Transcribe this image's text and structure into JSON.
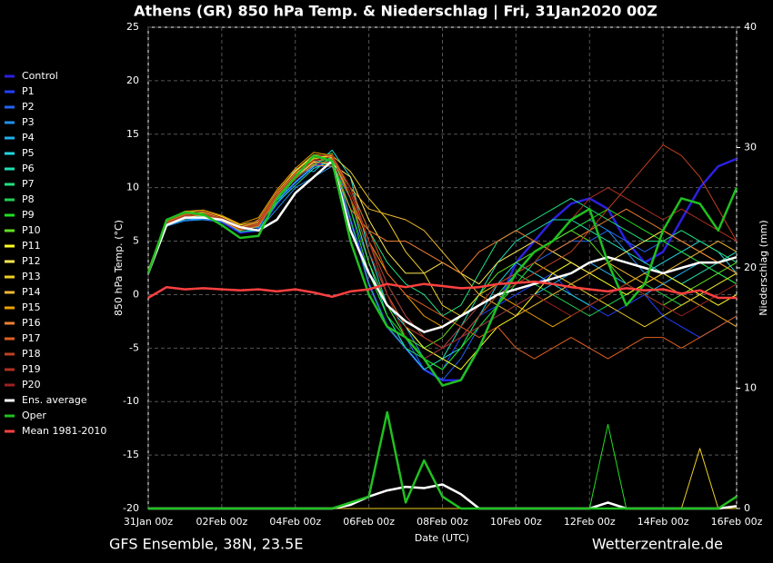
{
  "chart_data": {
    "type": "line",
    "title": "Athens  (GR)  850 hPa Temp. & Niederschlag | Fri, 31Jan2020 00Z",
    "ylabel": "850 hPa Temp. (°C)",
    "y2label": "Niederschlag (mm)",
    "xlabel": "Date (UTC)",
    "footer_left": "GFS Ensemble, 38N, 23.5E",
    "footer_right": "Wetterzentrale.de",
    "grid": true,
    "legend": "left",
    "categories": [
      "31Jan 00z",
      null,
      null,
      null,
      "02Feb 00z",
      null,
      null,
      null,
      "04Feb 00z",
      null,
      null,
      null,
      "06Feb 00z",
      null,
      null,
      null,
      "08Feb 00z",
      null,
      null,
      null,
      "10Feb 00z",
      null,
      null,
      null,
      "12Feb 00z",
      null,
      null,
      null,
      "14Feb 00z",
      null,
      null,
      null,
      "16Feb 00z"
    ],
    "ylim": [
      -20,
      25
    ],
    "yticks": [
      -20,
      -15,
      -10,
      -5,
      0,
      5,
      10,
      15,
      20,
      25
    ],
    "y2lim": [
      0,
      40
    ],
    "y2ticks": [
      0,
      10,
      20,
      30,
      40
    ],
    "series": [
      {
        "name": "Control",
        "color": "#2a20e0",
        "values": [
          2,
          6.8,
          7.3,
          7.2,
          6.8,
          5.8,
          6,
          8.5,
          10.5,
          12,
          12.6,
          7,
          1,
          -3,
          -5,
          -7,
          -8,
          -8,
          -5,
          -1,
          3,
          5,
          7,
          8.5,
          9,
          8,
          5,
          3,
          4,
          7,
          10,
          12,
          12.7
        ]
      },
      {
        "name": "P1",
        "color": "#2040ff",
        "values": [
          2,
          6.5,
          7,
          7,
          6.8,
          6,
          6.5,
          9,
          11.5,
          12,
          12,
          7,
          2,
          -2,
          -5,
          -6,
          -7,
          -4,
          -2,
          -1,
          0,
          1,
          2,
          0,
          -1,
          -2,
          -1,
          0,
          -2,
          -3,
          -4,
          -3,
          -2
        ]
      },
      {
        "name": "P2",
        "color": "#2065f5",
        "values": [
          2.2,
          6.6,
          7.1,
          7.2,
          6.9,
          5.8,
          6.2,
          8.5,
          11,
          12.5,
          12,
          8,
          3,
          -1,
          -4,
          -7,
          -8,
          -6,
          -3,
          -1,
          1,
          3,
          4,
          5,
          5,
          6,
          5,
          4,
          5,
          4,
          3,
          2,
          1
        ]
      },
      {
        "name": "P3",
        "color": "#2090f0",
        "values": [
          2,
          6.4,
          6.9,
          7,
          6.8,
          6.1,
          6,
          8,
          10,
          11,
          12,
          9,
          4,
          0,
          -3,
          -6,
          -5,
          -3,
          -1,
          0,
          2,
          4,
          5,
          6,
          7,
          6,
          4,
          2,
          1,
          0,
          -1,
          -2,
          -3
        ],
        "precip": [
          0,
          0,
          0,
          0,
          0,
          0,
          0,
          0,
          0,
          0,
          0,
          0,
          0,
          0,
          0,
          0,
          0,
          0,
          0,
          0,
          0,
          0,
          0,
          0,
          0,
          0,
          0,
          0,
          0,
          0,
          0,
          0,
          0
        ]
      },
      {
        "name": "P4",
        "color": "#20b0f0",
        "values": [
          2.1,
          6.5,
          7,
          7.1,
          7,
          6.2,
          6.3,
          9,
          11.8,
          11.5,
          13,
          10,
          5,
          1,
          -2,
          -4,
          -5,
          -4,
          -3,
          -2,
          -1,
          0,
          1,
          2,
          3,
          2,
          1,
          0,
          1,
          2,
          3,
          2,
          1
        ]
      },
      {
        "name": "P5",
        "color": "#20d8e0",
        "values": [
          2,
          6.8,
          7.3,
          7.4,
          7,
          6,
          6.5,
          8.8,
          10.5,
          12,
          13.5,
          11,
          4,
          -1,
          -3,
          -5,
          -6,
          -5,
          -2,
          1,
          3,
          2,
          1,
          0,
          -1,
          0,
          1,
          2,
          3,
          4,
          5,
          4,
          2
        ]
      },
      {
        "name": "P6",
        "color": "#20e0b0",
        "values": [
          2.3,
          7,
          7.5,
          7.6,
          7.2,
          6.4,
          6.8,
          9.2,
          11,
          12.3,
          12.8,
          9,
          3,
          -2,
          -5,
          -7,
          -6,
          -3,
          0,
          3,
          5,
          6,
          7,
          7,
          6,
          5,
          4,
          3,
          2,
          1,
          2,
          3,
          4
        ]
      },
      {
        "name": "P7",
        "color": "#20e080",
        "values": [
          2,
          6.6,
          7.2,
          7.3,
          7,
          5.9,
          6,
          8.6,
          10.2,
          11.8,
          12.5,
          10,
          6,
          3,
          1,
          0,
          -2,
          -1,
          2,
          5,
          6,
          7,
          8,
          9,
          8,
          7,
          6,
          5,
          5,
          6,
          5,
          4,
          3
        ]
      },
      {
        "name": "P8",
        "color": "#20d050",
        "values": [
          2.2,
          6.9,
          7.4,
          7.5,
          7.1,
          6,
          6.4,
          9,
          11,
          12.6,
          13,
          7,
          1,
          -3,
          -5,
          -6,
          -7,
          -5,
          -2,
          0,
          2,
          1,
          0,
          -1,
          -2,
          -1,
          0,
          1,
          0,
          -1,
          0,
          1,
          2
        ]
      },
      {
        "name": "P9",
        "color": "#20e020",
        "values": [
          2.1,
          6.7,
          7.3,
          7.4,
          7,
          6.1,
          6.5,
          8.9,
          10.8,
          12.2,
          12.6,
          8,
          2,
          -2,
          -4,
          -6,
          -7,
          -5,
          -3,
          -1,
          1,
          3,
          5,
          6,
          7,
          8,
          7,
          6,
          5,
          4,
          3,
          2,
          1
        ],
        "precip": [
          0,
          0,
          0,
          0,
          0,
          0,
          0,
          0,
          0,
          0,
          0,
          0,
          0,
          0,
          0,
          0,
          0,
          0,
          0,
          0,
          0,
          0,
          0,
          0,
          0,
          7,
          0,
          0,
          0,
          0,
          0,
          0,
          0
        ]
      },
      {
        "name": "P10",
        "color": "#60e020",
        "values": [
          2,
          6.8,
          7.6,
          7.7,
          7.2,
          6.3,
          6.6,
          9.1,
          11.2,
          12.8,
          13.2,
          9,
          3,
          -1,
          -4,
          -5,
          -4,
          -2,
          0,
          2,
          3,
          4,
          5,
          6,
          5,
          3,
          1,
          0,
          -1,
          0,
          1,
          2,
          3
        ]
      },
      {
        "name": "P11",
        "color": "#ffff20",
        "values": [
          2.2,
          7,
          7.7,
          7.8,
          7.3,
          6.5,
          6.9,
          9.5,
          11.5,
          13,
          12.8,
          10,
          5,
          0,
          -3,
          -5,
          -6,
          -7,
          -5,
          -3,
          -2,
          0,
          2,
          3,
          2,
          1,
          0,
          1,
          2,
          1,
          0,
          -1,
          0
        ]
      },
      {
        "name": "P12",
        "color": "#ffe850",
        "values": [
          2,
          6.6,
          7.2,
          7.5,
          7,
          6.2,
          6.7,
          9.3,
          11,
          12.4,
          12.2,
          11,
          7,
          4,
          2,
          2,
          3,
          2,
          1,
          3,
          4,
          5,
          4,
          3,
          2,
          3,
          4,
          5,
          6,
          5,
          4,
          3,
          2
        ]
      },
      {
        "name": "P13",
        "color": "#f0d020",
        "values": [
          2.1,
          6.9,
          7.5,
          7.7,
          7.2,
          6.3,
          6.8,
          9.4,
          11.3,
          12.7,
          13,
          11.5,
          9,
          7,
          4,
          2,
          -1,
          -2,
          0,
          1,
          2,
          3,
          2,
          1,
          0,
          -1,
          -2,
          -3,
          -2,
          -1,
          0,
          1,
          2
        ],
        "precip": [
          0,
          0,
          0,
          0,
          0,
          0,
          0,
          0,
          0,
          0,
          0,
          0,
          0,
          0,
          0,
          0,
          0,
          0,
          0,
          0,
          0,
          0,
          0,
          0,
          0,
          0,
          0,
          0,
          0,
          0,
          5,
          0,
          0
        ]
      },
      {
        "name": "P14",
        "color": "#f0b830",
        "values": [
          2,
          6.7,
          7.4,
          7.6,
          7.1,
          6.2,
          7,
          9.6,
          11.6,
          13.1,
          12.9,
          10,
          8,
          7.5,
          7,
          6,
          4,
          2,
          0,
          -1,
          -2,
          -1,
          0,
          1,
          2,
          3,
          2,
          1,
          2,
          3,
          4,
          5,
          4
        ]
      },
      {
        "name": "P15",
        "color": "#f0a000",
        "values": [
          2.3,
          7,
          7.8,
          7.9,
          7.4,
          6.6,
          7.2,
          9.8,
          11.8,
          13.3,
          13,
          9,
          5,
          2,
          0,
          -2,
          -3,
          -2,
          -1,
          0,
          -1,
          -2,
          -3,
          -2,
          -1,
          0,
          1,
          2,
          1,
          0,
          -1,
          -2,
          -3
        ]
      },
      {
        "name": "P16",
        "color": "#f08030",
        "values": [
          2,
          6.5,
          7.1,
          7.3,
          6.9,
          6,
          6.4,
          9,
          10.9,
          12.1,
          12,
          8,
          6,
          5,
          5,
          4,
          3,
          2,
          4,
          5,
          6,
          5,
          4,
          5,
          6,
          7,
          8,
          7,
          6,
          5,
          4,
          3,
          2
        ]
      },
      {
        "name": "P17",
        "color": "#e06020",
        "values": [
          2.2,
          6.8,
          7.5,
          7.6,
          7.1,
          6.2,
          6.6,
          9.2,
          11.1,
          12.5,
          12.7,
          10,
          6,
          2,
          0,
          -1,
          -2,
          -3,
          -4,
          -3,
          -5,
          -6,
          -5,
          -4,
          -5,
          -6,
          -5,
          -4,
          -4,
          -5,
          -4,
          -3,
          -2
        ]
      },
      {
        "name": "P18",
        "color": "#c04020",
        "values": [
          2.1,
          6.6,
          7.3,
          7.5,
          7,
          6.1,
          6.5,
          9,
          10.8,
          12.3,
          12.4,
          9,
          4,
          0,
          -3,
          -4,
          -5,
          -4,
          -2,
          0,
          1,
          2,
          3,
          4,
          6,
          8,
          10,
          12,
          14,
          13,
          11,
          8,
          5
        ]
      },
      {
        "name": "P19",
        "color": "#b03020",
        "values": [
          2,
          6.7,
          7.4,
          7.6,
          7.1,
          6.2,
          6.7,
          9.3,
          11.2,
          12.6,
          12.9,
          9.5,
          5,
          1,
          -2,
          -4,
          -5,
          -3,
          -1,
          1,
          2,
          3,
          5,
          7,
          9,
          10,
          9,
          8,
          7,
          8,
          7,
          6,
          5
        ]
      },
      {
        "name": "P20",
        "color": "#a02020",
        "values": [
          2.2,
          6.9,
          7.6,
          7.8,
          7.2,
          6.4,
          6.9,
          9.5,
          11.4,
          12.9,
          13.1,
          10,
          5,
          0,
          -4,
          -6,
          -5,
          -4,
          -3,
          -2,
          -1,
          0,
          -1,
          -2,
          -1,
          0,
          1,
          0,
          -1,
          -2,
          -1,
          0,
          1
        ]
      },
      {
        "name": "Ens. average",
        "color": "#ffffff",
        "values": [
          2,
          6.5,
          7.2,
          7.2,
          7,
          6.3,
          6,
          7,
          9.5,
          11,
          12.5,
          6,
          2,
          -1,
          -2.5,
          -3.5,
          -3,
          -2,
          -1,
          0,
          0.5,
          1,
          1.5,
          2,
          3,
          3.5,
          3,
          2.5,
          2,
          2.5,
          3,
          3,
          3.5
        ],
        "precip": [
          0,
          0,
          0,
          0,
          0,
          0,
          0,
          0,
          0,
          0,
          0,
          0.3,
          1,
          1.5,
          1.8,
          1.7,
          2,
          1.2,
          0,
          0,
          0,
          0,
          0,
          0,
          0,
          0.5,
          0,
          0,
          0,
          0,
          0,
          0,
          0.2
        ]
      },
      {
        "name": "Oper",
        "color": "#20c020",
        "values": [
          2,
          7,
          7.7,
          7.5,
          6.5,
          5.3,
          5.5,
          9,
          11,
          13,
          12.5,
          5,
          0,
          -3,
          -4,
          -6,
          -8.5,
          -8,
          -5,
          -1,
          2,
          4,
          5,
          7,
          8,
          3,
          -1,
          1,
          6,
          9,
          8.5,
          6,
          10
        ],
        "precip": [
          0,
          0,
          0,
          0,
          0,
          0,
          0,
          0,
          0,
          0,
          0,
          0.5,
          1,
          8,
          0.5,
          4,
          1,
          0,
          0,
          0,
          0,
          0,
          0,
          0,
          0,
          0,
          0,
          0,
          0,
          0,
          0,
          0,
          1
        ]
      },
      {
        "name": "Mean 1981-2010",
        "color": "#ff4040",
        "values": [
          -0.3,
          0.7,
          0.5,
          0.6,
          0.5,
          0.4,
          0.5,
          0.3,
          0.5,
          0.2,
          -0.2,
          0.3,
          0.5,
          1,
          0.7,
          1,
          0.8,
          0.6,
          0.7,
          1,
          1.1,
          1.2,
          1,
          0.7,
          0.5,
          0.3,
          0.6,
          0.4,
          0.5,
          0.1,
          0.4,
          -0.3,
          -0.3
        ]
      }
    ]
  }
}
